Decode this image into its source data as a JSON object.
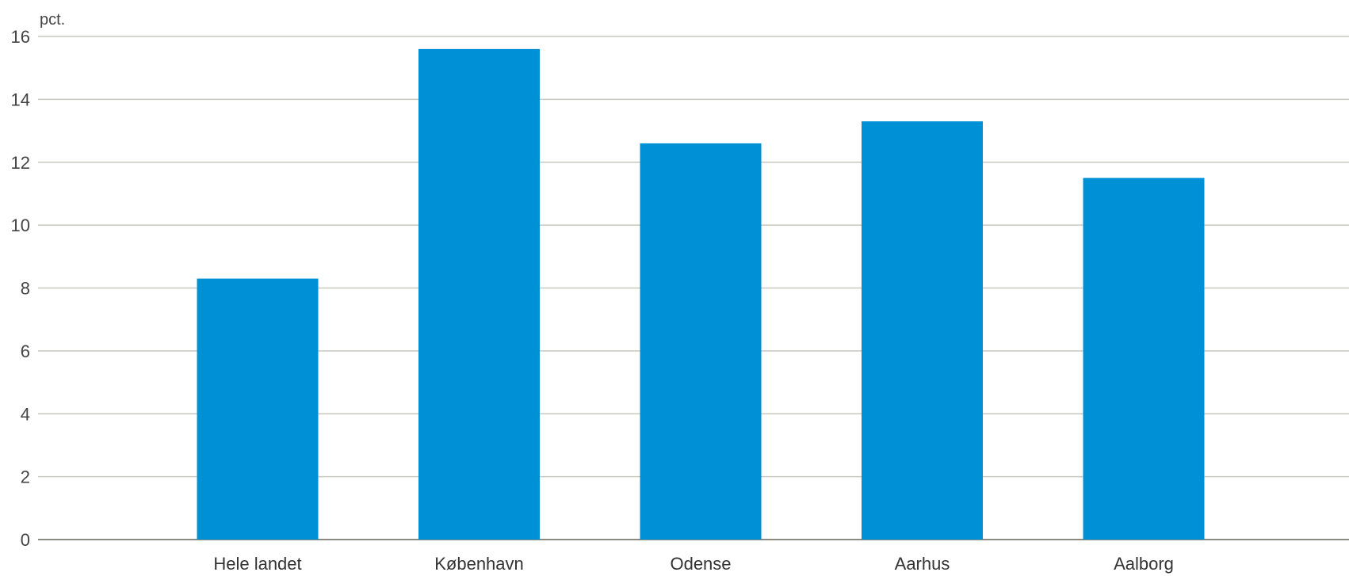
{
  "chart_data": {
    "type": "bar",
    "ylabel": "pct.",
    "categories": [
      "Hele landet",
      "København",
      "Odense",
      "Aarhus",
      "Aalborg"
    ],
    "values": [
      8.3,
      15.6,
      12.6,
      13.3,
      11.5
    ],
    "ylim": [
      0,
      16
    ],
    "yticks": [
      0,
      2,
      4,
      6,
      8,
      10,
      12,
      14,
      16
    ],
    "grid": true,
    "legend": "none",
    "colors": {
      "bar": "#0090d5",
      "grid": "#c8c8be",
      "axis": "#8a8a80"
    }
  }
}
